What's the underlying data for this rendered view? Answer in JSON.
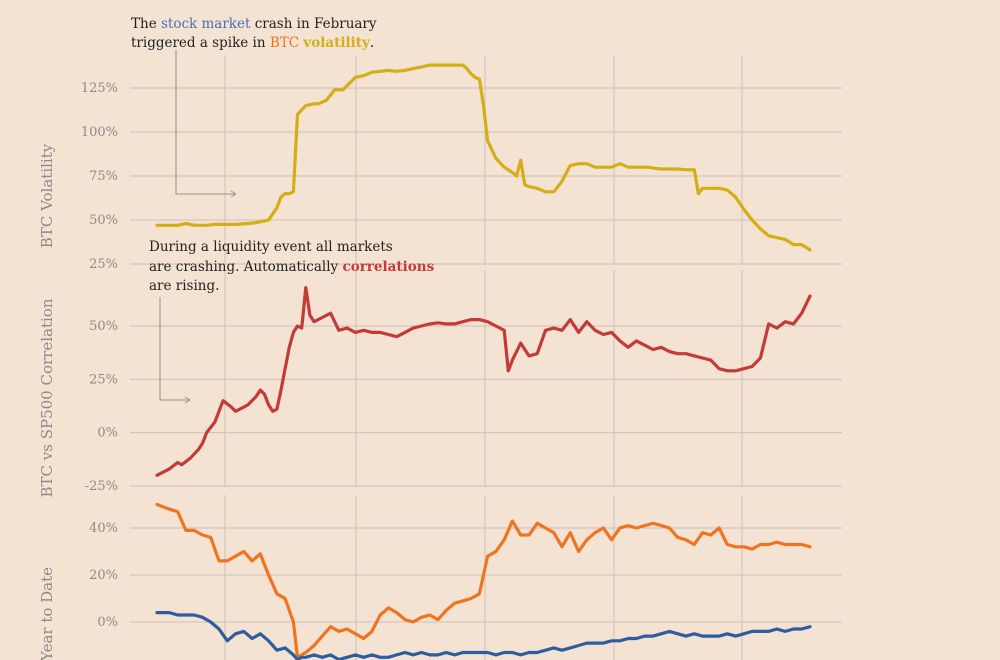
{
  "colors": {
    "background": "#f4e2d3",
    "volatility": "#d4ae14",
    "correlation": "#c23b37",
    "btc_ytd": "#ee741f",
    "sp500_ytd": "#2d5d9f",
    "stock_market_text": "#4a6fb5",
    "btc_text": "#ee741f",
    "volatility_text": "#d4ae14",
    "correlations_text": "#c23b37"
  },
  "annotations": {
    "volatility": {
      "part1": "The ",
      "part2": "stock market",
      "part3": " crash in February",
      "line2_part1": "triggered a spike in ",
      "line2_part2": "BTC",
      "line2_part3": " ",
      "line2_part4": "volatility",
      "line2_part5": "."
    },
    "correlation": {
      "line1": "During a liquidity event all markets",
      "line2_part1": "are crashing. Automatically ",
      "line2_part2": "correlations",
      "line3": "are rising."
    }
  },
  "chart_data": [
    {
      "type": "line",
      "ylabel": "BTC Volatility",
      "ylim": [
        25,
        140
      ],
      "yticks": [
        25,
        50,
        75,
        100,
        125
      ],
      "yticklabels": [
        "25%",
        "50%",
        "75%",
        "100%",
        "125%"
      ],
      "grid": true,
      "series": [
        {
          "color": "#d4ae14",
          "x": [
            0,
            3,
            5,
            7,
            9,
            12,
            14,
            16,
            19,
            22,
            24,
            27,
            29,
            30,
            31,
            32,
            33,
            34,
            36,
            38,
            39,
            40,
            41,
            43,
            45,
            48,
            50,
            52,
            54,
            56,
            58,
            60,
            62,
            64,
            66,
            68,
            70,
            71,
            72,
            73,
            74,
            75,
            76,
            77,
            78,
            79,
            80,
            82,
            84,
            86,
            87,
            88,
            89,
            90,
            92,
            94,
            96,
            98,
            100,
            102,
            104,
            106,
            108,
            110,
            112,
            114,
            116,
            118,
            119,
            120,
            122,
            124,
            126,
            128,
            130,
            131,
            132,
            134,
            136,
            138,
            140,
            142,
            144,
            146,
            148,
            150,
            152,
            154,
            156,
            158
          ],
          "y": [
            47,
            47,
            47,
            48,
            47,
            47,
            47.5,
            47.5,
            47.5,
            48,
            48.5,
            50,
            57,
            63,
            65,
            65,
            66,
            110,
            115,
            116,
            116,
            117,
            118,
            124,
            124,
            131,
            132,
            134,
            134.5,
            135,
            134.5,
            135,
            136,
            137,
            138,
            138,
            138,
            138,
            138,
            138,
            138,
            136,
            133,
            131,
            130,
            115,
            95,
            85,
            80,
            77,
            75,
            84,
            70,
            69,
            68,
            66,
            66,
            72,
            81,
            82,
            82,
            80,
            80,
            80,
            82,
            80,
            80,
            80,
            80,
            79.5,
            79,
            79,
            79,
            78.5,
            78.5,
            65,
            68,
            68,
            68,
            67,
            63,
            56,
            50,
            45,
            41,
            40,
            39,
            36,
            36,
            33
          ]
        }
      ]
    },
    {
      "type": "line",
      "ylabel": "BTC vs SP500 Correlation",
      "ylim": [
        -25,
        70
      ],
      "yticks": [
        -25,
        0,
        25,
        50
      ],
      "yticklabels": [
        "-25%",
        "0%",
        "25%",
        "50%"
      ],
      "grid": true,
      "series": [
        {
          "color": "#c23b37",
          "x": [
            0,
            3,
            5,
            6,
            8,
            10,
            11,
            12,
            14,
            16,
            18,
            19,
            20,
            21,
            22,
            24,
            25,
            26,
            27,
            28,
            29,
            30,
            31,
            32,
            33,
            34,
            35,
            36,
            37,
            38,
            40,
            42,
            44,
            46,
            48,
            50,
            52,
            54,
            56,
            58,
            60,
            62,
            64,
            66,
            68,
            70,
            72,
            74,
            76,
            78,
            80,
            82,
            84,
            85,
            86,
            88,
            90,
            92,
            94,
            96,
            98,
            100,
            102,
            104,
            106,
            108,
            110,
            112,
            114,
            116,
            118,
            120,
            122,
            124,
            126,
            128,
            130,
            132,
            134,
            136,
            138,
            140,
            142,
            144,
            146,
            148,
            150,
            152,
            154,
            156,
            158
          ],
          "y": [
            -20,
            -17,
            -14,
            -15,
            -12,
            -8,
            -5,
            0,
            5,
            15,
            12,
            10,
            11,
            12,
            13,
            17,
            20,
            18,
            13,
            10,
            11,
            20,
            30,
            40,
            47,
            50,
            49,
            68,
            55,
            52,
            54,
            56,
            48,
            49,
            47,
            48,
            47,
            47,
            46,
            45,
            47,
            49,
            50,
            51,
            51.5,
            51,
            51,
            52,
            53,
            53,
            52,
            50,
            48,
            29,
            34,
            42,
            36,
            37,
            48,
            49,
            48,
            53,
            47,
            52,
            48,
            46,
            47,
            43,
            40,
            43,
            41,
            39,
            40,
            38,
            37,
            37,
            36,
            35,
            34,
            30,
            29,
            29,
            30,
            31,
            35,
            51,
            49,
            52,
            51,
            56,
            64
          ]
        }
      ]
    },
    {
      "type": "line",
      "ylabel": "Year to Date",
      "ylim": [
        -20,
        50
      ],
      "yticks": [
        0,
        20,
        40
      ],
      "yticklabels": [
        "0%",
        "20%",
        "40%"
      ],
      "grid": true,
      "series": [
        {
          "color": "#ee741f",
          "x": [
            0,
            3,
            5,
            7,
            9,
            11,
            13,
            15,
            17,
            19,
            21,
            23,
            25,
            27,
            29,
            31,
            33,
            34,
            35,
            36,
            38,
            40,
            42,
            44,
            46,
            48,
            50,
            52,
            54,
            56,
            58,
            60,
            62,
            64,
            66,
            68,
            70,
            72,
            74,
            76,
            78,
            80,
            82,
            84,
            86,
            88,
            90,
            92,
            94,
            96,
            98,
            100,
            102,
            104,
            106,
            108,
            110,
            112,
            114,
            116,
            118,
            120,
            122,
            124,
            126,
            128,
            130,
            132,
            134,
            136,
            138,
            140,
            142,
            144,
            146,
            148,
            150,
            152,
            154,
            156,
            158
          ],
          "y": [
            50,
            48,
            47,
            39,
            39,
            37,
            36,
            26,
            26,
            28,
            30,
            26,
            29,
            20,
            12,
            10,
            0,
            -15,
            -14,
            -13,
            -10,
            -6,
            -2,
            -4,
            -3,
            -5,
            -7,
            -4,
            3,
            6,
            4,
            1,
            0,
            2,
            3,
            1,
            5,
            8,
            9,
            10,
            12,
            28,
            30,
            35,
            43,
            37,
            37,
            42,
            40,
            38,
            32,
            38,
            30,
            35,
            38,
            40,
            35,
            40,
            41,
            40,
            41,
            42,
            41,
            40,
            36,
            35,
            33,
            38,
            37,
            40,
            33,
            32,
            32,
            31,
            33,
            33,
            34,
            33,
            33,
            33,
            32
          ]
        },
        {
          "color": "#2d5d9f",
          "x": [
            0,
            3,
            5,
            7,
            9,
            11,
            13,
            15,
            17,
            19,
            21,
            23,
            25,
            27,
            29,
            31,
            33,
            34,
            35,
            36,
            38,
            40,
            42,
            44,
            46,
            48,
            50,
            52,
            54,
            56,
            58,
            60,
            62,
            64,
            66,
            68,
            70,
            72,
            74,
            76,
            78,
            80,
            82,
            84,
            86,
            88,
            90,
            92,
            94,
            96,
            98,
            100,
            102,
            104,
            106,
            108,
            110,
            112,
            114,
            116,
            118,
            120,
            122,
            124,
            126,
            128,
            130,
            132,
            134,
            136,
            138,
            140,
            142,
            144,
            146,
            148,
            150,
            152,
            154,
            156,
            158
          ],
          "y": [
            4,
            4,
            3,
            3,
            3,
            2,
            0,
            -3,
            -8,
            -5,
            -4,
            -7,
            -5,
            -8,
            -12,
            -11,
            -14,
            -16,
            -15,
            -15,
            -14,
            -15,
            -14,
            -16,
            -15,
            -14,
            -15,
            -14,
            -15,
            -15,
            -14,
            -13,
            -14,
            -13,
            -14,
            -14,
            -13,
            -14,
            -13,
            -13,
            -13,
            -13,
            -14,
            -13,
            -13,
            -14,
            -13,
            -13,
            -12,
            -11,
            -12,
            -11,
            -10,
            -9,
            -9,
            -9,
            -8,
            -8,
            -7,
            -7,
            -6,
            -6,
            -5,
            -4,
            -5,
            -6,
            -5,
            -6,
            -6,
            -6,
            -5,
            -6,
            -5,
            -4,
            -4,
            -4,
            -3,
            -4,
            -3,
            -3,
            -2
          ]
        }
      ]
    }
  ]
}
